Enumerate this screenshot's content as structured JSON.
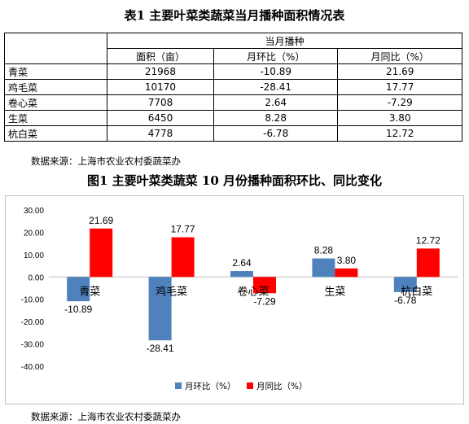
{
  "table": {
    "title": "表1 主要叶菜类蔬菜当月播种面积情况表",
    "group_header": "当月播种",
    "columns": [
      "面积（亩）",
      "月环比（%）",
      "月同比（%）"
    ],
    "rows": [
      {
        "name": "青菜",
        "area": "21968",
        "mom": "-10.89",
        "yoy": "21.69"
      },
      {
        "name": "鸡毛菜",
        "area": "10170",
        "mom": "-28.41",
        "yoy": "17.77"
      },
      {
        "name": "卷心菜",
        "area": "7708",
        "mom": "2.64",
        "yoy": "-7.29"
      },
      {
        "name": "生菜",
        "area": "6450",
        "mom": "8.28",
        "yoy": "3.80"
      },
      {
        "name": "杭白菜",
        "area": "4778",
        "mom": "-6.78",
        "yoy": "12.72"
      }
    ],
    "source": "数据来源：上海市农业农村委蔬菜办"
  },
  "chart": {
    "title": "图1 主要叶菜类蔬菜 10 月份播种面积环比、同比变化",
    "source": "数据来源：上海市农业农村委蔬菜办"
  },
  "chart_data": {
    "type": "bar",
    "categories": [
      "青菜",
      "鸡毛菜",
      "卷心菜",
      "生菜",
      "杭白菜"
    ],
    "series": [
      {
        "name": "月环比（%）",
        "values": [
          -10.89,
          -28.41,
          2.64,
          8.28,
          -6.78
        ],
        "color": "#4f81bd"
      },
      {
        "name": "月同比（%）",
        "values": [
          21.69,
          17.77,
          -7.29,
          3.8,
          12.72
        ],
        "color": "#ff0000"
      }
    ],
    "data_labels": [
      [
        "-10.89",
        "-28.41",
        "2.64",
        "8.28",
        "-6.78"
      ],
      [
        "21.69",
        "17.77",
        "-7.29",
        "3.80",
        "12.72"
      ]
    ],
    "ylim": [
      -40,
      30
    ],
    "yticks": [
      "30.00",
      "20.00",
      "10.00",
      "0.00",
      "-10.00",
      "-20.00",
      "-30.00",
      "-40.00"
    ],
    "ytick_values": [
      30,
      20,
      10,
      0,
      -10,
      -20,
      -30,
      -40
    ],
    "grid": false,
    "legend": "bottom-center"
  }
}
